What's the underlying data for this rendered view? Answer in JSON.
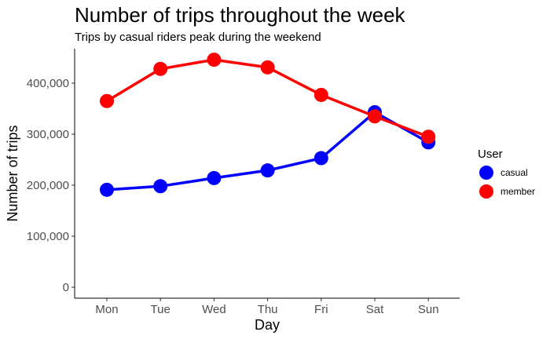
{
  "chart_data": {
    "type": "line",
    "title": "Number of trips throughout the week",
    "subtitle": "Trips by casual riders peak during the weekend",
    "xlabel": "Day",
    "ylabel": "Number of trips",
    "categories": [
      "Mon",
      "Tue",
      "Wed",
      "Thu",
      "Fri",
      "Sat",
      "Sun"
    ],
    "ylim": [
      0,
      460000
    ],
    "yticks": [
      0,
      100000,
      200000,
      300000,
      400000
    ],
    "ytick_labels": [
      "0",
      "100,000",
      "200,000",
      "300,000",
      "400,000"
    ],
    "grid": false,
    "legend": {
      "title": "User",
      "position": "right"
    },
    "series": [
      {
        "name": "casual",
        "color": "#0000ff",
        "values": [
          191000,
          198000,
          214000,
          229000,
          253000,
          343000,
          284000
        ]
      },
      {
        "name": "member",
        "color": "#ff0000",
        "values": [
          365000,
          428000,
          446000,
          431000,
          377000,
          335000,
          295000
        ]
      }
    ]
  }
}
